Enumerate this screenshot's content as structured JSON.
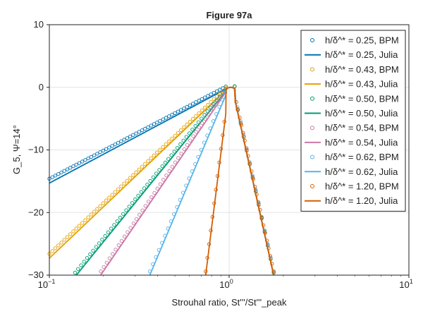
{
  "chart_data": {
    "type": "line",
    "title": "Figure 97a",
    "xlabel": "Strouhal ratio, St'''/St'''_peak",
    "ylabel": "G_5, Ψ=14°",
    "xscale": "log",
    "xlim": [
      0.1,
      10
    ],
    "ylim": [
      -30,
      10
    ],
    "x_ticks": [
      0.1,
      1,
      10
    ],
    "x_tick_labels": [
      {
        "base": "10",
        "exp": "−1"
      },
      {
        "base": "10",
        "exp": "0"
      },
      {
        "base": "10",
        "exp": "1"
      }
    ],
    "y_ticks": [
      10,
      0,
      -10,
      -20,
      -30
    ],
    "y_tick_labels": [
      "10",
      "0",
      "−10",
      "−20",
      "−30"
    ],
    "grid": true,
    "legend_position": "top-right",
    "series": [
      {
        "name": "h/δ^* = 0.25, BPM",
        "kind": "markers",
        "color": "#0072b2",
        "slope": 15.0
      },
      {
        "name": "h/δ^* = 0.25, Julia",
        "kind": "line",
        "color": "#0072b2",
        "slope": 15.3
      },
      {
        "name": "h/δ^* = 0.43, BPM",
        "kind": "markers",
        "color": "#e69f00",
        "slope": 27.0
      },
      {
        "name": "h/δ^* = 0.43, Julia",
        "kind": "line",
        "color": "#e69f00",
        "slope": 27.3
      },
      {
        "name": "h/δ^* = 0.50, BPM",
        "kind": "markers",
        "color": "#009e73",
        "slope": 35.0
      },
      {
        "name": "h/δ^* = 0.50, Julia",
        "kind": "line",
        "color": "#009e73",
        "slope": 35.3
      },
      {
        "name": "h/δ^* = 0.54, BPM",
        "kind": "markers",
        "color": "#cc79a7",
        "slope": 42.0
      },
      {
        "name": "h/δ^* = 0.54, Julia",
        "kind": "line",
        "color": "#cc79a7",
        "slope": 42.0
      },
      {
        "name": "h/δ^* = 0.62, BPM",
        "kind": "markers",
        "color": "#56b4e9",
        "slope": 68.0
      },
      {
        "name": "h/δ^* = 0.62, Julia",
        "kind": "line",
        "color": "#56b4e9",
        "slope": 68.0
      },
      {
        "name": "h/δ^* = 1.20, BPM",
        "kind": "markers",
        "color": "#d55e00",
        "slope": 230.0
      },
      {
        "name": "h/δ^* = 1.20, Julia",
        "kind": "line",
        "color": "#d55e00",
        "slope": 230.0
      }
    ],
    "falling_branch": {
      "slope": 130.0,
      "x_end": 1.8
    }
  }
}
